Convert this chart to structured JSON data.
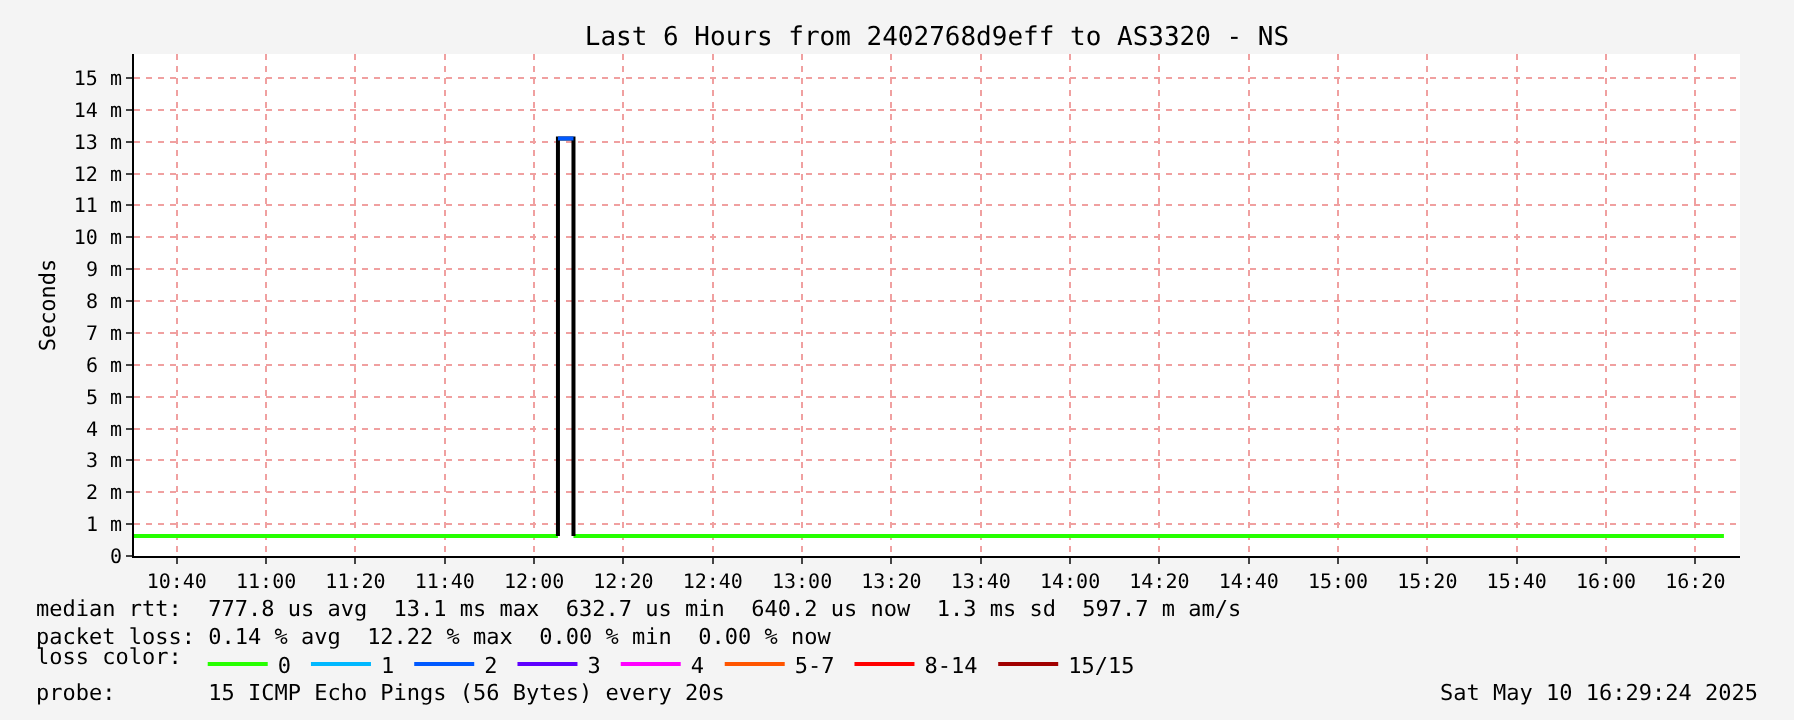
{
  "chart_data": {
    "type": "line",
    "title": "Last 6 Hours from 2402768d9eff to AS3320 - NS",
    "ylabel": "Seconds",
    "xlim": [
      10.507,
      16.5
    ],
    "ylim": [
      0,
      15.75
    ],
    "xticks": [
      {
        "value": 10.6667,
        "label": "10:40"
      },
      {
        "value": 11,
        "label": "11:00"
      },
      {
        "value": 11.3333,
        "label": "11:20"
      },
      {
        "value": 11.6667,
        "label": "11:40"
      },
      {
        "value": 12,
        "label": "12:00"
      },
      {
        "value": 12.3333,
        "label": "12:20"
      },
      {
        "value": 12.6667,
        "label": "12:40"
      },
      {
        "value": 13,
        "label": "13:00"
      },
      {
        "value": 13.3333,
        "label": "13:20"
      },
      {
        "value": 13.6667,
        "label": "13:40"
      },
      {
        "value": 14,
        "label": "14:00"
      },
      {
        "value": 14.3333,
        "label": "14:20"
      },
      {
        "value": 14.6667,
        "label": "14:40"
      },
      {
        "value": 15,
        "label": "15:00"
      },
      {
        "value": 15.3333,
        "label": "15:20"
      },
      {
        "value": 15.6667,
        "label": "15:40"
      },
      {
        "value": 16,
        "label": "16:00"
      },
      {
        "value": 16.3333,
        "label": "16:20"
      }
    ],
    "yticks": [
      0,
      {
        "value": 1,
        "label": "1 m"
      },
      {
        "value": 2,
        "label": "2 m"
      },
      {
        "value": 3,
        "label": "3 m"
      },
      {
        "value": 4,
        "label": "4 m"
      },
      {
        "value": 5,
        "label": "5 m"
      },
      {
        "value": 6,
        "label": "6 m"
      },
      {
        "value": 7,
        "label": "7 m"
      },
      {
        "value": 8,
        "label": "8 m"
      },
      {
        "value": 9,
        "label": "9 m"
      },
      {
        "value": 10,
        "label": "10 m"
      },
      {
        "value": 11,
        "label": "11 m"
      },
      {
        "value": 12,
        "label": "12 m"
      },
      {
        "value": 13,
        "label": "13 m"
      },
      {
        "value": 14,
        "label": "14 m"
      },
      {
        "value": 15,
        "label": "15 m"
      }
    ],
    "grid": true,
    "legend": "bottom",
    "legend_title": "loss color:",
    "series": [
      {
        "name": "0",
        "color": "#26ff00",
        "x": [
          10.507,
          12.089,
          12.1,
          12.147,
          16.44
        ],
        "values": [
          0.63,
          0.63,
          null,
          0.63,
          0.63
        ]
      },
      {
        "color": "#000000",
        "x": [
          12.089,
          12.089,
          12.147,
          12.147
        ],
        "values": [
          0.63,
          13.1,
          13.1,
          0.63
        ]
      },
      {
        "name": "1",
        "color": "#00b8ff"
      },
      {
        "name": "2",
        "color": "#0059ff",
        "x": [
          12.089,
          12.147
        ],
        "values": [
          13.1,
          13.1
        ]
      },
      {
        "name": "3",
        "color": "#5e00ff"
      },
      {
        "name": "4",
        "color": "#ff00ff"
      },
      {
        "name": "5-7",
        "color": "#ff5500"
      },
      {
        "name": "8-14",
        "color": "#ff0000"
      },
      {
        "name": "15/15",
        "color": "#a10000"
      }
    ],
    "annotations": [
      "median rtt:  777.8 us avg  13.1 ms max  632.7 us min  640.2 us now  1.3 ms sd  597.7 m am/s",
      "packet loss: 0.14 % avg  12.22 % max  0.00 % min  0.00 % now",
      "probe:       15 ICMP Echo Pings (56 Bytes) every 20s",
      "Sat May 10 16:29:24 2025"
    ]
  }
}
